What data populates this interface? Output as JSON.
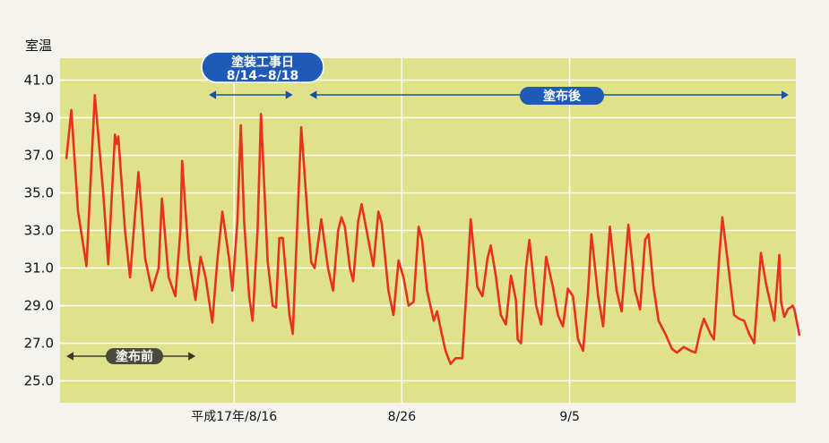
{
  "chart_data": {
    "type": "line",
    "title": "",
    "ylabel": "室温",
    "xlabel": "",
    "ylim": [
      24.0,
      42.0
    ],
    "yticks": [
      "41.0",
      "39.0",
      "37.0",
      "35.0",
      "33.0",
      "31.0",
      "29.0",
      "27.0",
      "25.0"
    ],
    "xticks": [
      {
        "label": "平成17年/8/16",
        "t": 10
      },
      {
        "label": "8/26",
        "t": 20
      },
      {
        "label": "9/5",
        "t": 30
      }
    ],
    "grid": true,
    "colors": {
      "plot_bg": "#dfe28a",
      "line": "#e8321e",
      "pill": "#1e5bb8",
      "arrow": "#1e4fa8",
      "grid": "#ffffff"
    },
    "series": [
      {
        "name": "",
        "points": [
          [
            0.0,
            36.8
          ],
          [
            0.3,
            39.4
          ],
          [
            0.7,
            34.0
          ],
          [
            1.2,
            31.1
          ],
          [
            1.7,
            40.2
          ],
          [
            2.2,
            35.0
          ],
          [
            2.5,
            31.2
          ],
          [
            2.9,
            38.1
          ],
          [
            3.0,
            37.6
          ],
          [
            3.1,
            38.0
          ],
          [
            3.5,
            33.0
          ],
          [
            3.8,
            30.5
          ],
          [
            4.2,
            35.0
          ],
          [
            4.3,
            36.1
          ],
          [
            4.7,
            31.5
          ],
          [
            5.1,
            29.8
          ],
          [
            5.5,
            31.0
          ],
          [
            5.7,
            34.7
          ],
          [
            6.1,
            30.5
          ],
          [
            6.5,
            29.5
          ],
          [
            6.8,
            33.0
          ],
          [
            6.9,
            36.7
          ],
          [
            7.3,
            31.5
          ],
          [
            7.7,
            29.3
          ],
          [
            8.0,
            31.6
          ],
          [
            8.3,
            30.5
          ],
          [
            8.7,
            28.1
          ],
          [
            9.0,
            31.4
          ],
          [
            9.3,
            34.0
          ],
          [
            9.7,
            31.5
          ],
          [
            9.9,
            29.8
          ],
          [
            10.2,
            33.5
          ],
          [
            10.4,
            38.6
          ],
          [
            10.6,
            33.5
          ],
          [
            10.9,
            29.5
          ],
          [
            11.1,
            28.2
          ],
          [
            11.4,
            33.0
          ],
          [
            11.6,
            39.2
          ],
          [
            12.0,
            31.4
          ],
          [
            12.3,
            29.0
          ],
          [
            12.5,
            28.9
          ],
          [
            12.7,
            32.6
          ],
          [
            12.9,
            32.6
          ],
          [
            13.3,
            28.5
          ],
          [
            13.5,
            27.5
          ],
          [
            13.8,
            34.0
          ],
          [
            14.0,
            38.5
          ],
          [
            14.4,
            33.5
          ],
          [
            14.6,
            31.3
          ],
          [
            14.8,
            31.0
          ],
          [
            15.2,
            33.6
          ],
          [
            15.6,
            31.0
          ],
          [
            15.9,
            29.8
          ],
          [
            16.2,
            33.0
          ],
          [
            16.4,
            33.7
          ],
          [
            16.6,
            33.2
          ],
          [
            16.9,
            31.0
          ],
          [
            17.1,
            30.3
          ],
          [
            17.4,
            33.5
          ],
          [
            17.6,
            34.4
          ],
          [
            18.0,
            32.5
          ],
          [
            18.3,
            31.1
          ],
          [
            18.6,
            34.0
          ],
          [
            18.8,
            33.4
          ],
          [
            19.2,
            29.8
          ],
          [
            19.5,
            28.5
          ],
          [
            19.8,
            31.4
          ],
          [
            20.1,
            30.5
          ],
          [
            20.4,
            29.0
          ],
          [
            20.7,
            29.2
          ],
          [
            21.0,
            33.2
          ],
          [
            21.2,
            32.5
          ],
          [
            21.5,
            29.8
          ],
          [
            21.9,
            28.2
          ],
          [
            22.1,
            28.7
          ],
          [
            22.3,
            27.8
          ],
          [
            22.6,
            26.6
          ],
          [
            22.9,
            25.9
          ],
          [
            23.2,
            26.2
          ],
          [
            23.6,
            26.2
          ],
          [
            23.9,
            30.5
          ],
          [
            24.1,
            33.6
          ],
          [
            24.5,
            30.0
          ],
          [
            24.8,
            29.5
          ],
          [
            25.1,
            31.5
          ],
          [
            25.3,
            32.2
          ],
          [
            25.6,
            30.6
          ],
          [
            25.9,
            28.5
          ],
          [
            26.2,
            28.0
          ],
          [
            26.5,
            30.6
          ],
          [
            26.8,
            29.3
          ],
          [
            26.9,
            27.2
          ],
          [
            27.1,
            27.0
          ],
          [
            27.4,
            31.0
          ],
          [
            27.6,
            32.5
          ],
          [
            28.0,
            29.0
          ],
          [
            28.3,
            28.0
          ],
          [
            28.6,
            31.6
          ],
          [
            29.0,
            30.0
          ],
          [
            29.3,
            28.5
          ],
          [
            29.6,
            27.9
          ],
          [
            29.9,
            29.9
          ],
          [
            30.2,
            29.5
          ],
          [
            30.5,
            27.2
          ],
          [
            30.8,
            26.6
          ],
          [
            31.1,
            29.8
          ],
          [
            31.3,
            32.8
          ],
          [
            31.7,
            29.5
          ],
          [
            32.0,
            27.9
          ],
          [
            32.4,
            33.2
          ],
          [
            32.8,
            29.8
          ],
          [
            33.1,
            28.7
          ],
          [
            33.5,
            33.3
          ],
          [
            33.9,
            29.8
          ],
          [
            34.2,
            28.8
          ],
          [
            34.5,
            32.5
          ],
          [
            34.7,
            32.8
          ],
          [
            35.0,
            30.0
          ],
          [
            35.3,
            28.2
          ],
          [
            35.7,
            27.5
          ],
          [
            36.1,
            26.7
          ],
          [
            36.4,
            26.5
          ],
          [
            36.8,
            26.8
          ],
          [
            37.2,
            26.6
          ],
          [
            37.5,
            26.5
          ],
          [
            37.8,
            27.7
          ],
          [
            38.0,
            28.3
          ],
          [
            38.2,
            27.9
          ],
          [
            38.4,
            27.5
          ],
          [
            38.6,
            27.2
          ],
          [
            38.9,
            31.4
          ],
          [
            39.1,
            33.7
          ],
          [
            39.5,
            30.8
          ],
          [
            39.8,
            28.5
          ],
          [
            40.1,
            28.3
          ],
          [
            40.4,
            28.2
          ],
          [
            40.7,
            27.5
          ],
          [
            41.0,
            27.0
          ],
          [
            41.4,
            31.8
          ],
          [
            41.7,
            30.2
          ],
          [
            42.0,
            29.0
          ],
          [
            42.2,
            28.2
          ],
          [
            42.5,
            31.7
          ],
          [
            42.6,
            29.2
          ],
          [
            42.8,
            28.4
          ],
          [
            43.0,
            28.8
          ],
          [
            43.3,
            29.0
          ],
          [
            43.4,
            28.8
          ],
          [
            43.7,
            27.4
          ]
        ]
      }
    ],
    "annotations": [
      {
        "label": "塗装工事日",
        "label2": "8/14~8/18",
        "from": 8.5,
        "to": 13.5
      },
      {
        "label": "塗布後",
        "from": 14.5,
        "to": 44.0
      },
      {
        "label": "塗布前",
        "from": 0.0,
        "to": 7.7
      }
    ]
  }
}
